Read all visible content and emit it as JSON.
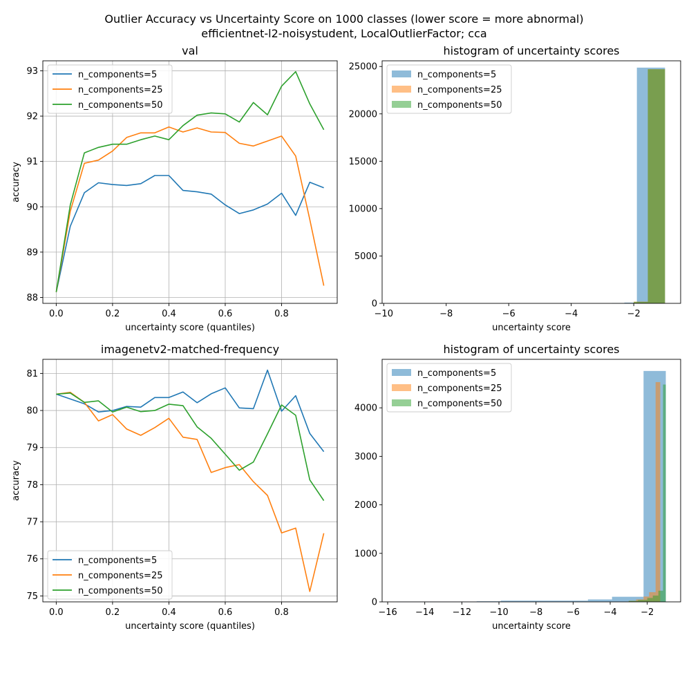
{
  "figure": {
    "title_line1": "Outlier Accuracy vs Uncertainty Score on 1000 classes (lower score = more abnormal)",
    "title_line2": "efficientnet-l2-noisystudent, LocalOutlierFactor; cca"
  },
  "colors": {
    "s5": "#1f77b4",
    "s25": "#ff7f0e",
    "s50": "#2ca02c"
  },
  "chart_data": [
    {
      "type": "line",
      "title": "val",
      "xlabel": "uncertainty score (quantiles)",
      "ylabel": "accuracy",
      "xlim": [
        -0.0475,
        0.9975
      ],
      "ylim": [
        87.87,
        93.22
      ],
      "xticks": [
        0.0,
        0.2,
        0.4,
        0.6,
        0.8
      ],
      "xtick_labels": [
        "0.0",
        "0.2",
        "0.4",
        "0.6",
        "0.8"
      ],
      "yticks": [
        88,
        89,
        90,
        91,
        92,
        93
      ],
      "ytick_labels": [
        "88",
        "89",
        "90",
        "91",
        "92",
        "93"
      ],
      "grid": true,
      "legend_position": "top-left",
      "x": [
        0.0,
        0.05,
        0.1,
        0.15,
        0.2,
        0.25,
        0.3,
        0.35,
        0.4,
        0.45,
        0.5,
        0.55,
        0.6,
        0.65,
        0.7,
        0.75,
        0.8,
        0.85,
        0.9,
        0.95
      ],
      "series": [
        {
          "name": "n_components=5",
          "color": "#1f77b4",
          "values": [
            88.12,
            89.57,
            90.31,
            90.53,
            90.49,
            90.47,
            90.51,
            90.69,
            90.69,
            90.36,
            90.33,
            90.28,
            90.04,
            89.85,
            89.93,
            90.06,
            90.3,
            89.81,
            90.54,
            90.42
          ]
        },
        {
          "name": "n_components=25",
          "color": "#ff7f0e",
          "values": [
            88.12,
            89.9,
            90.96,
            91.03,
            91.23,
            91.53,
            91.63,
            91.63,
            91.76,
            91.65,
            91.74,
            91.65,
            91.64,
            91.4,
            91.34,
            91.45,
            91.56,
            91.12,
            89.72,
            88.26
          ]
        },
        {
          "name": "n_components=50",
          "color": "#2ca02c",
          "values": [
            88.12,
            90.04,
            91.19,
            91.31,
            91.38,
            91.38,
            91.48,
            91.56,
            91.48,
            91.79,
            92.02,
            92.07,
            92.05,
            91.87,
            92.3,
            92.03,
            92.66,
            92.98,
            92.27,
            91.7
          ]
        }
      ]
    },
    {
      "type": "bar",
      "title": "histogram of uncertainty scores",
      "xlabel": "uncertainty score",
      "ylabel": "",
      "xlim": [
        -10.05,
        -0.5
      ],
      "ylim": [
        0,
        25600
      ],
      "xticks": [
        -10,
        -8,
        -6,
        -4,
        -2
      ],
      "xtick_labels": [
        "−10",
        "−8",
        "−6",
        "−4",
        "−2"
      ],
      "yticks": [
        0,
        5000,
        10000,
        15000,
        20000,
        25000
      ],
      "ytick_labels": [
        "0",
        "5000",
        "10000",
        "15000",
        "20000",
        "25000"
      ],
      "legend_position": "top-left",
      "series": [
        {
          "name": "n_components=5",
          "color": "#1f77b4",
          "bins": [
            [
              -2.7,
              -2.3,
              30
            ],
            [
              -2.3,
              -1.9,
              80
            ],
            [
              -1.9,
              -1.0,
              24880
            ]
          ]
        },
        {
          "name": "n_components=25",
          "color": "#ff7f0e",
          "bins": [
            [
              -2.0,
              -1.55,
              180
            ],
            [
              -1.55,
              -1.0,
              24720
            ]
          ]
        },
        {
          "name": "n_components=50",
          "color": "#2ca02c",
          "bins": [
            [
              -2.0,
              -1.55,
              160
            ],
            [
              -1.55,
              -1.0,
              24710
            ]
          ]
        }
      ]
    },
    {
      "type": "line",
      "title": "imagenetv2-matched-frequency",
      "xlabel": "uncertainty score (quantiles)",
      "ylabel": "accuracy",
      "xlim": [
        -0.0475,
        0.9975
      ],
      "ylim": [
        74.84,
        81.38
      ],
      "xticks": [
        0.0,
        0.2,
        0.4,
        0.6,
        0.8
      ],
      "xtick_labels": [
        "0.0",
        "0.2",
        "0.4",
        "0.6",
        "0.8"
      ],
      "yticks": [
        75,
        76,
        77,
        78,
        79,
        80,
        81
      ],
      "ytick_labels": [
        "75",
        "76",
        "77",
        "78",
        "79",
        "80",
        "81"
      ],
      "grid": true,
      "legend_position": "bottom-left",
      "x": [
        0.0,
        0.05,
        0.1,
        0.15,
        0.2,
        0.25,
        0.3,
        0.35,
        0.4,
        0.45,
        0.5,
        0.55,
        0.6,
        0.65,
        0.7,
        0.75,
        0.8,
        0.85,
        0.9,
        0.95
      ],
      "series": [
        {
          "name": "n_components=5",
          "color": "#1f77b4",
          "values": [
            80.44,
            80.31,
            80.18,
            79.96,
            80.0,
            80.11,
            80.09,
            80.35,
            80.35,
            80.5,
            80.21,
            80.45,
            80.61,
            80.07,
            80.05,
            81.09,
            79.98,
            80.4,
            79.38,
            78.89
          ]
        },
        {
          "name": "n_components=25",
          "color": "#ff7f0e",
          "values": [
            80.44,
            80.49,
            80.22,
            79.72,
            79.89,
            79.5,
            79.33,
            79.54,
            79.79,
            79.28,
            79.22,
            78.33,
            78.46,
            78.54,
            78.08,
            77.71,
            76.7,
            76.83,
            75.12,
            76.69
          ]
        },
        {
          "name": "n_components=50",
          "color": "#2ca02c",
          "values": [
            80.44,
            80.47,
            80.22,
            80.26,
            79.96,
            80.09,
            79.97,
            80.0,
            80.17,
            80.13,
            79.56,
            79.25,
            78.82,
            78.39,
            78.61,
            79.37,
            80.15,
            79.87,
            78.13,
            77.57
          ]
        }
      ]
    },
    {
      "type": "bar",
      "title": "histogram of uncertainty scores",
      "xlabel": "uncertainty score",
      "ylabel": "",
      "xlim": [
        -16.3,
        -0.2
      ],
      "ylim": [
        0,
        5000
      ],
      "xticks": [
        -16,
        -14,
        -12,
        -10,
        -8,
        -6,
        -4,
        -2
      ],
      "xtick_labels": [
        "−16",
        "−14",
        "−12",
        "−10",
        "−8",
        "−6",
        "−4",
        "−2"
      ],
      "yticks": [
        0,
        1000,
        2000,
        3000,
        4000
      ],
      "ytick_labels": [
        "0",
        "1000",
        "2000",
        "3000",
        "4000"
      ],
      "legend_position": "top-left",
      "series": [
        {
          "name": "n_components=5",
          "color": "#1f77b4",
          "bins": [
            [
              -15.5,
              -14.2,
              5
            ],
            [
              -14.2,
              -11.2,
              3
            ],
            [
              -11.2,
              -9.9,
              12
            ],
            [
              -9.9,
              -5.2,
              25
            ],
            [
              -5.2,
              -3.9,
              50
            ],
            [
              -3.9,
              -2.2,
              105
            ],
            [
              -2.2,
              -1.0,
              4760
            ]
          ]
        },
        {
          "name": "n_components=25",
          "color": "#ff7f0e",
          "bins": [
            [
              -3.0,
              -2.6,
              20
            ],
            [
              -2.6,
              -2.2,
              50
            ],
            [
              -2.2,
              -1.9,
              110
            ],
            [
              -1.9,
              -1.55,
              200
            ],
            [
              -1.55,
              -1.3,
              4530
            ]
          ]
        },
        {
          "name": "n_components=50",
          "color": "#2ca02c",
          "bins": [
            [
              -3.0,
              -2.5,
              20
            ],
            [
              -2.5,
              -2.0,
              40
            ],
            [
              -2.0,
              -1.7,
              80
            ],
            [
              -1.7,
              -1.4,
              130
            ],
            [
              -1.4,
              -1.15,
              230
            ],
            [
              -1.15,
              -1.0,
              4480
            ]
          ]
        }
      ]
    }
  ]
}
